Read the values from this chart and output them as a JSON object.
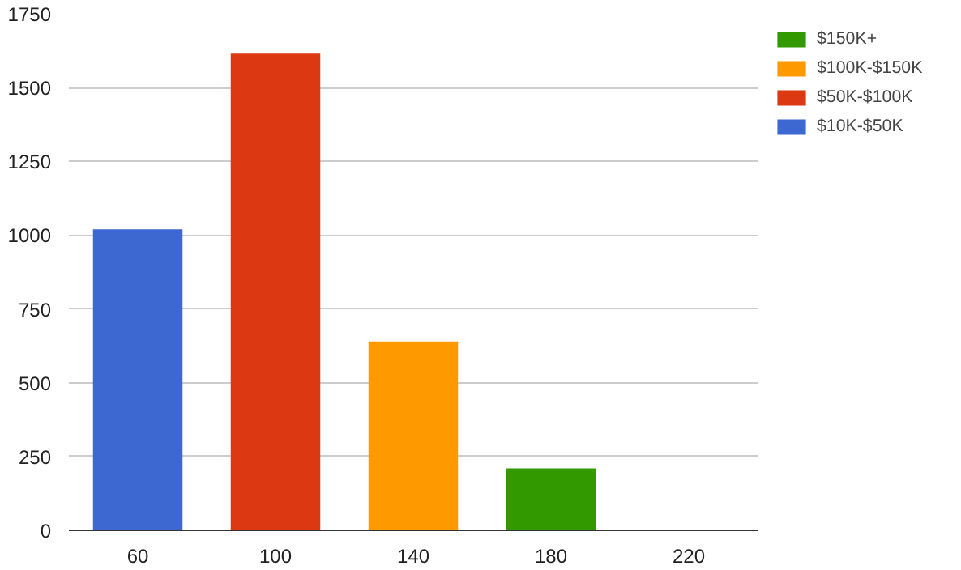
{
  "chart_data": {
    "type": "bar",
    "categories": [
      "60",
      "100",
      "140",
      "180",
      "220"
    ],
    "series": [
      {
        "name": "$150K+",
        "color": "#339900",
        "values": [
          null,
          null,
          null,
          210,
          null
        ]
      },
      {
        "name": "$100K-$150K",
        "color": "#ff9900",
        "values": [
          null,
          null,
          640,
          null,
          null
        ]
      },
      {
        "name": "$50K-$100K",
        "color": "#dc3912",
        "values": [
          null,
          1615,
          null,
          null,
          null
        ]
      },
      {
        "name": "$10K-$50K",
        "color": "#3d68d2",
        "values": [
          1020,
          null,
          null,
          null,
          null
        ]
      }
    ],
    "ylim": [
      0,
      1750
    ],
    "yticks": [
      0,
      250,
      500,
      750,
      1000,
      1250,
      1500,
      1750
    ],
    "grid": "y",
    "legend": "top right"
  }
}
